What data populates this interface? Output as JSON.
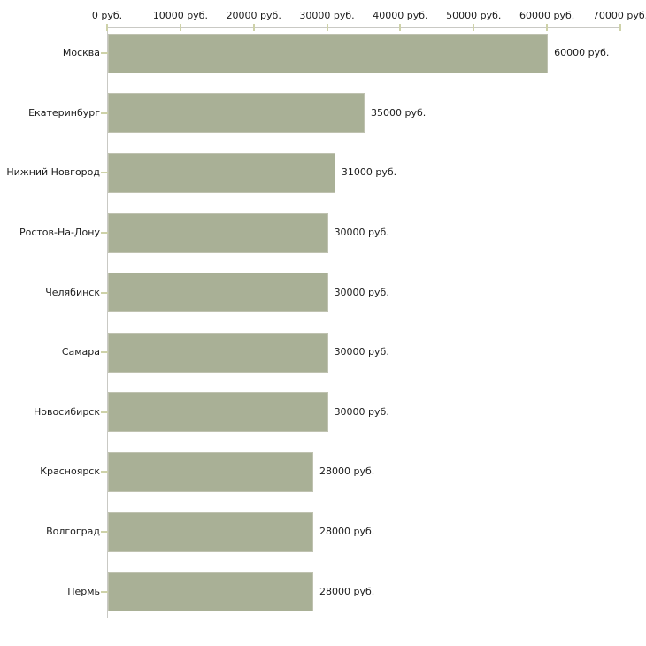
{
  "chart_data": {
    "type": "bar",
    "orientation": "horizontal",
    "title": "",
    "xlabel": "",
    "ylabel": "",
    "categories": [
      "Москва",
      "Екатеринбург",
      "Нижний Новгород",
      "Ростов-На-Дону",
      "Челябинск",
      "Самара",
      "Новосибирск",
      "Красноярск",
      "Волгоград",
      "Пермь"
    ],
    "values": [
      60000,
      35000,
      31000,
      30000,
      30000,
      30000,
      30000,
      28000,
      28000,
      28000
    ],
    "value_labels": [
      "60000 руб.",
      "35000 руб.",
      "31000 руб.",
      "30000 руб.",
      "30000 руб.",
      "30000 руб.",
      "30000 руб.",
      "28000 руб.",
      "28000 руб.",
      "28000 руб."
    ],
    "x_axis": {
      "position": "top",
      "min": 0,
      "max": 70000,
      "ticks": [
        0,
        10000,
        20000,
        30000,
        40000,
        50000,
        60000,
        70000
      ],
      "tick_labels": [
        "0 руб.",
        "10000 руб.",
        "20000 руб.",
        "30000 руб.",
        "40000 руб.",
        "50000 руб.",
        "60000 руб.",
        "70000 руб."
      ]
    },
    "legend": null,
    "grid": false,
    "colors": {
      "bar_fill": "#a9b096",
      "bar_border": "#bfc2b0",
      "axis_line": "#c9c9c4",
      "tick_mark": "#ced2a9",
      "text": "#1c1c1c",
      "background": "#ffffff"
    }
  }
}
